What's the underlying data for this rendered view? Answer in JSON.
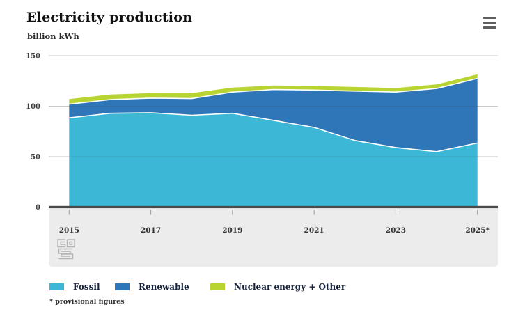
{
  "header": {
    "title": "Electricity production",
    "unit": "billion kWh"
  },
  "chart_data": {
    "type": "area",
    "stacked": true,
    "title": "Electricity production",
    "ylabel": "billion kWh",
    "xlabel": "",
    "x": [
      2015,
      2016,
      2017,
      2018,
      2019,
      2020,
      2021,
      2022,
      2023,
      2024,
      2025
    ],
    "xtick_labels": [
      "2015",
      "2017",
      "2019",
      "2021",
      "2023",
      "2025*"
    ],
    "xtick_indices": [
      0,
      2,
      4,
      6,
      8,
      10
    ],
    "yticks": [
      0,
      50,
      100,
      150
    ],
    "ylim": [
      0,
      150
    ],
    "grid": true,
    "legend_position": "bottom",
    "series": [
      {
        "name": "Fossil",
        "color": "#3cb7d6",
        "values": [
          88.5,
          93,
          93.5,
          91,
          93,
          86,
          79,
          66,
          59,
          55,
          63.5
        ]
      },
      {
        "name": "Renewable",
        "color": "#2f76b8",
        "values": [
          13.5,
          13.5,
          14.5,
          16.5,
          21,
          30.5,
          37,
          49,
          55,
          62.5,
          64
        ]
      },
      {
        "name": "Nuclear energy + Other",
        "color": "#b7d433",
        "values": [
          5,
          5,
          5,
          5.5,
          4.5,
          4,
          4,
          4,
          4,
          4,
          4
        ]
      }
    ]
  },
  "footnote": "* provisional figures"
}
